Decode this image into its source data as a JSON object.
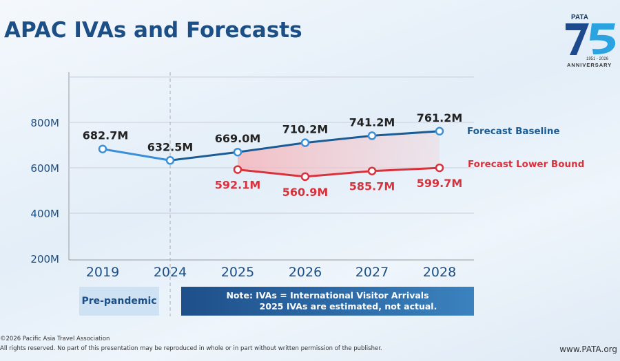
{
  "title": "APAC IVAs and Forecasts",
  "logo": {
    "text": "PATA",
    "years": "1951 - 2026",
    "subtitle": "ANNIVERSARY",
    "number": "75"
  },
  "chart_data": {
    "type": "line",
    "categories": [
      "2019",
      "2024",
      "2025",
      "2026",
      "2027",
      "2028"
    ],
    "y_ticks": [
      "200M",
      "400M",
      "600M",
      "800M"
    ],
    "ylim": [
      200,
      900
    ],
    "series": [
      {
        "name": "Forecast Baseline",
        "values": [
          682.7,
          632.5,
          669.0,
          710.2,
          741.2,
          761.2
        ],
        "labels": [
          "682.7M",
          "632.5M",
          "669.0M",
          "710.2M",
          "741.2M",
          "761.2M"
        ],
        "color": "#1c5c94",
        "history_color": "#3a8fd6"
      },
      {
        "name": "Forecast Lower Bound",
        "values": [
          null,
          null,
          592.1,
          560.9,
          585.7,
          599.7
        ],
        "labels": [
          "",
          "",
          "592.1M",
          "560.9M",
          "585.7M",
          "599.7M"
        ],
        "color": "#d8323c"
      }
    ],
    "shaded_between_series": true,
    "grid": true,
    "legend": "right, inline at line ends"
  },
  "notes": {
    "pre_pandemic": "Pre-pandemic",
    "note_line1": "Note: IVAs = International Visitor Arrivals",
    "note_line2": "2025 IVAs are estimated, not actual."
  },
  "footer": {
    "copyright": "©2026 Pacific Asia Travel Association",
    "rights": "All rights reserved. No part of this presentation may be reproduced in whole or in part without written permission of the publisher.",
    "url": "www.PATA.org"
  }
}
